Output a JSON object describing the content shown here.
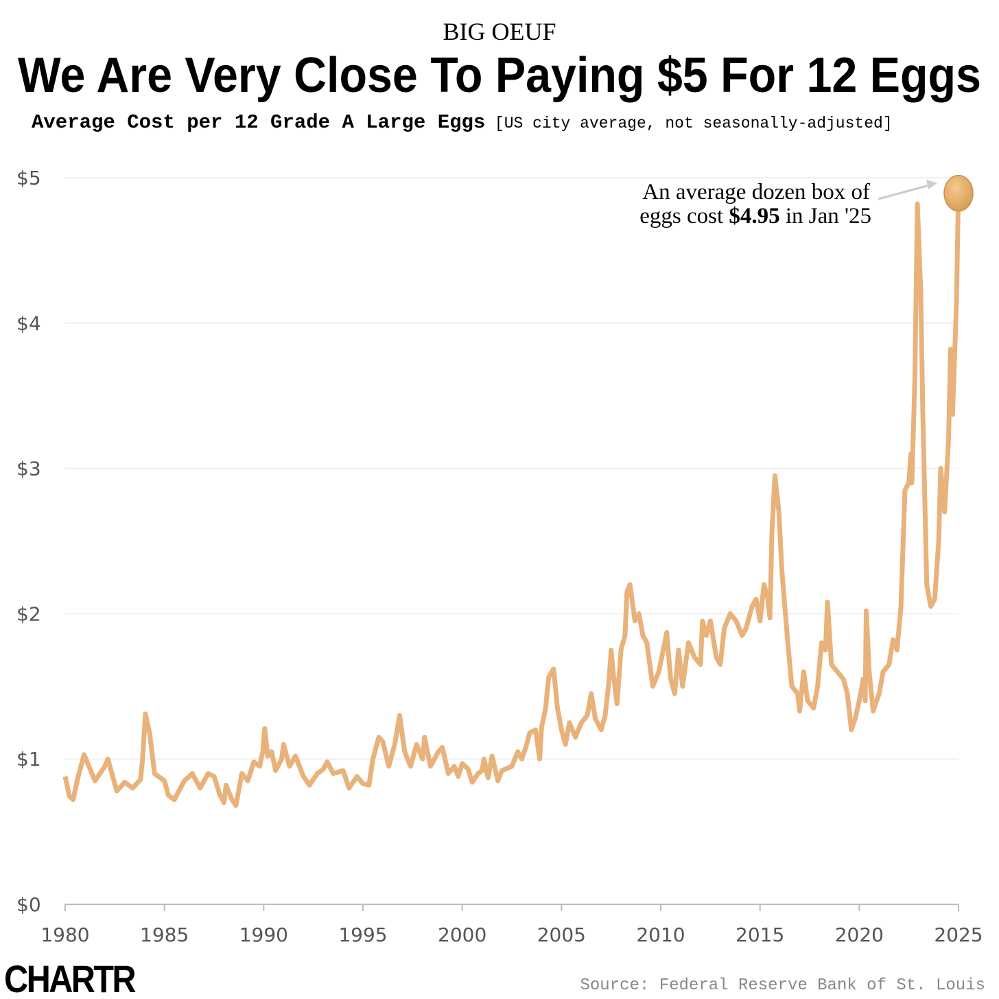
{
  "chart_data": {
    "type": "line",
    "kicker": "BIG OEUF",
    "title": "We Are Very Close To Paying $5 For 12 Eggs",
    "subtitle": "Average Cost per 12 Grade A Large Eggs",
    "subtitle_note": "[US city average, not seasonally-adjusted]",
    "annotation": {
      "line1": "An average dozen box of",
      "line2_start": "eggs cost",
      "line2_value": "$4.95",
      "line2_end": "in Jan '25"
    },
    "source": "Source: Federal Reserve Bank of St. Louis",
    "brand": "CHARTR",
    "color": "#e8b27a",
    "grid": true,
    "xlim": [
      1980,
      2025
    ],
    "xticks": [
      1980,
      1985,
      1990,
      1995,
      2000,
      2005,
      2010,
      2015,
      2020,
      2025
    ],
    "ylim": [
      0,
      5
    ],
    "yticks": [
      {
        "value": 0,
        "label": "$0"
      },
      {
        "value": 1,
        "label": "$1"
      },
      {
        "value": 2,
        "label": "$2"
      },
      {
        "value": 3,
        "label": "$3"
      },
      {
        "value": 4,
        "label": "$4"
      },
      {
        "value": 5,
        "label": "$5"
      }
    ],
    "series": [
      {
        "name": "Average Cost per 12 Grade A Large Eggs",
        "color": "#e8b27a",
        "x": [
          1980.0,
          1980.2,
          1980.4,
          1980.6,
          1980.95,
          1981.5,
          1982.0,
          1982.15,
          1982.6,
          1983.0,
          1983.4,
          1983.8,
          1983.9,
          1984.04,
          1984.25,
          1984.5,
          1985.0,
          1985.2,
          1985.5,
          1986.0,
          1986.4,
          1986.8,
          1987.2,
          1987.5,
          1987.8,
          1988.0,
          1988.1,
          1988.4,
          1988.6,
          1988.9,
          1989.2,
          1989.5,
          1989.8,
          1989.95,
          1990.05,
          1990.2,
          1990.4,
          1990.6,
          1990.9,
          1991.0,
          1991.3,
          1991.6,
          1992.0,
          1992.3,
          1992.7,
          1993.0,
          1993.2,
          1993.5,
          1994.0,
          1994.3,
          1994.7,
          1995.0,
          1995.3,
          1995.5,
          1995.8,
          1996.0,
          1996.3,
          1996.6,
          1996.85,
          1997.1,
          1997.4,
          1997.7,
          1998.0,
          1998.1,
          1998.4,
          1998.8,
          1999.0,
          1999.3,
          1999.6,
          1999.8,
          2000.0,
          2000.3,
          2000.5,
          2000.8,
          2001.0,
          2001.1,
          2001.3,
          2001.5,
          2001.8,
          2002.0,
          2002.5,
          2002.8,
          2003.0,
          2003.2,
          2003.4,
          2003.7,
          2003.9,
          2004.0,
          2004.2,
          2004.35,
          2004.6,
          2004.8,
          2005.0,
          2005.2,
          2005.4,
          2005.7,
          2006.0,
          2006.3,
          2006.5,
          2006.7,
          2007.0,
          2007.2,
          2007.4,
          2007.5,
          2007.6,
          2007.8,
          2008.0,
          2008.2,
          2008.3,
          2008.45,
          2008.7,
          2008.9,
          2009.1,
          2009.3,
          2009.6,
          2009.9,
          2010.2,
          2010.3,
          2010.5,
          2010.7,
          2010.9,
          2011.1,
          2011.4,
          2011.7,
          2012.0,
          2012.1,
          2012.3,
          2012.5,
          2012.8,
          2013.0,
          2013.2,
          2013.5,
          2013.8,
          2014.1,
          2014.3,
          2014.6,
          2014.8,
          2015.0,
          2015.2,
          2015.4,
          2015.5,
          2015.6,
          2015.75,
          2015.95,
          2016.1,
          2016.4,
          2016.6,
          2016.9,
          2017.0,
          2017.2,
          2017.4,
          2017.7,
          2017.9,
          2018.1,
          2018.3,
          2018.4,
          2018.6,
          2018.9,
          2019.2,
          2019.4,
          2019.6,
          2019.8,
          2020.0,
          2020.2,
          2020.3,
          2020.35,
          2020.5,
          2020.7,
          2021.0,
          2021.2,
          2021.5,
          2021.7,
          2021.9,
          2022.1,
          2022.3,
          2022.5,
          2022.6,
          2022.65,
          2022.8,
          2022.93,
          2023.1,
          2023.2,
          2023.4,
          2023.6,
          2023.8,
          2024.0,
          2024.1,
          2024.3,
          2024.5,
          2024.6,
          2024.7,
          2024.9,
          2025.0
        ],
        "values": [
          0.88,
          0.75,
          0.72,
          0.85,
          1.03,
          0.85,
          0.95,
          1.0,
          0.78,
          0.84,
          0.8,
          0.86,
          1.0,
          1.31,
          1.18,
          0.9,
          0.85,
          0.75,
          0.72,
          0.85,
          0.9,
          0.8,
          0.9,
          0.88,
          0.75,
          0.7,
          0.82,
          0.72,
          0.68,
          0.9,
          0.85,
          0.98,
          0.95,
          1.05,
          1.21,
          1.02,
          1.05,
          0.92,
          1.0,
          1.1,
          0.95,
          1.02,
          0.88,
          0.82,
          0.9,
          0.93,
          0.98,
          0.9,
          0.92,
          0.8,
          0.88,
          0.83,
          0.82,
          1.0,
          1.15,
          1.12,
          0.95,
          1.1,
          1.3,
          1.05,
          0.95,
          1.1,
          1.0,
          1.15,
          0.95,
          1.05,
          1.08,
          0.9,
          0.95,
          0.88,
          0.97,
          0.93,
          0.84,
          0.9,
          0.92,
          1.0,
          0.87,
          1.02,
          0.85,
          0.92,
          0.95,
          1.05,
          1.0,
          1.08,
          1.18,
          1.2,
          1.0,
          1.22,
          1.35,
          1.56,
          1.62,
          1.35,
          1.2,
          1.1,
          1.25,
          1.15,
          1.25,
          1.3,
          1.45,
          1.28,
          1.2,
          1.3,
          1.55,
          1.75,
          1.6,
          1.38,
          1.75,
          1.85,
          2.15,
          2.2,
          1.95,
          2.0,
          1.85,
          1.8,
          1.5,
          1.6,
          1.8,
          1.87,
          1.55,
          1.45,
          1.75,
          1.5,
          1.8,
          1.7,
          1.65,
          1.95,
          1.85,
          1.95,
          1.7,
          1.65,
          1.9,
          2.0,
          1.95,
          1.85,
          1.9,
          2.05,
          2.1,
          1.95,
          2.2,
          2.1,
          1.97,
          2.55,
          2.95,
          2.7,
          2.3,
          1.8,
          1.5,
          1.45,
          1.33,
          1.6,
          1.4,
          1.35,
          1.5,
          1.8,
          1.75,
          2.08,
          1.65,
          1.6,
          1.55,
          1.45,
          1.2,
          1.28,
          1.4,
          1.55,
          1.4,
          2.02,
          1.6,
          1.33,
          1.45,
          1.6,
          1.65,
          1.82,
          1.75,
          2.05,
          2.85,
          2.9,
          3.1,
          2.9,
          3.6,
          4.82,
          4.2,
          3.4,
          2.2,
          2.05,
          2.1,
          2.5,
          3.0,
          2.7,
          3.2,
          3.82,
          3.37,
          4.15,
          4.95
        ]
      }
    ]
  }
}
